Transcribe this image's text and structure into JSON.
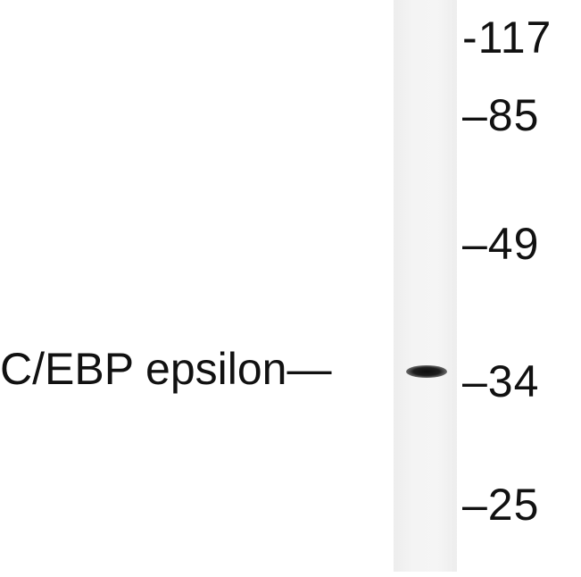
{
  "blot": {
    "protein_label": "C/EBP epsilon—",
    "markers": [
      "-117",
      "–85",
      "–49",
      "–34",
      "–25"
    ]
  }
}
